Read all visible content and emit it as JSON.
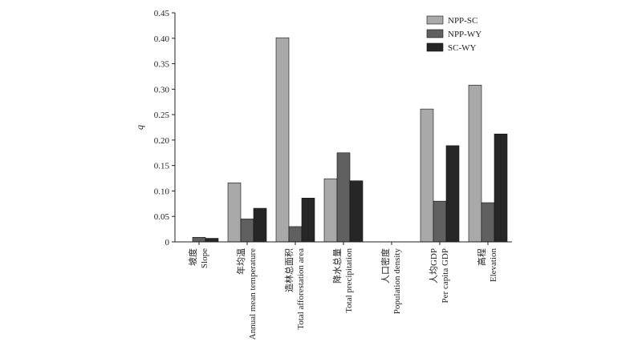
{
  "chart_data": {
    "type": "bar",
    "title": "",
    "xlabel": "",
    "ylabel": "q",
    "ylim": [
      0,
      0.45
    ],
    "yticks": [
      "0",
      "0.05",
      "0.10",
      "0.15",
      "0.20",
      "0.25",
      "0.30",
      "0.35",
      "0.40",
      "0.45"
    ],
    "grid": false,
    "legend_position": "top-right",
    "categories": [
      {
        "zh": "坡度",
        "en": "Slope"
      },
      {
        "zh": "年均温",
        "en": "Annual mean temperature"
      },
      {
        "zh": "造林总面积",
        "en": "Total afforestation area"
      },
      {
        "zh": "降水总量",
        "en": "Total precipitation"
      },
      {
        "zh": "人口密度",
        "en": "Population density"
      },
      {
        "zh": "人均GDP",
        "en": "Per capita GDP"
      },
      {
        "zh": "高程",
        "en": "Elevation"
      }
    ],
    "series": [
      {
        "name": "NPP-SC",
        "color": "#a9a9a9",
        "values": [
          0,
          0.116,
          0.401,
          0.124,
          0,
          0.261,
          0.308
        ]
      },
      {
        "name": "NPP-WY",
        "color": "#606060",
        "values": [
          0.009,
          0.045,
          0.03,
          0.175,
          0,
          0.08,
          0.077
        ]
      },
      {
        "name": "SC-WY",
        "color": "#262626",
        "values": [
          0.007,
          0.066,
          0.086,
          0.12,
          0,
          0.189,
          0.212
        ]
      }
    ]
  }
}
